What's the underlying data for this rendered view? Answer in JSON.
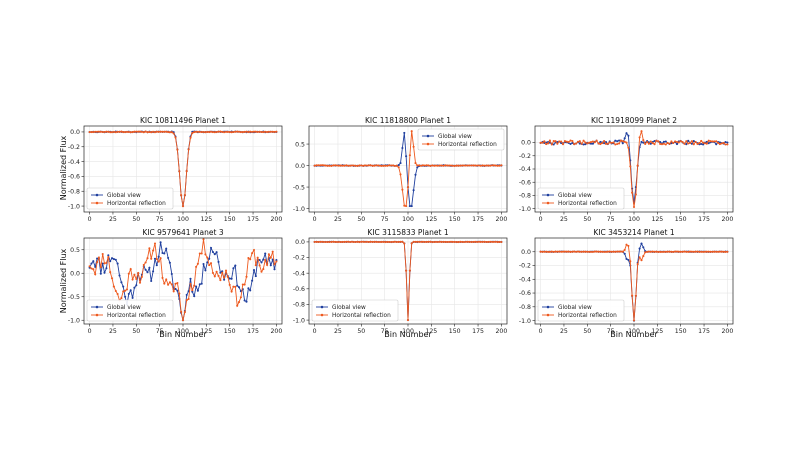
{
  "figure": {
    "xlabel": "Bin Number",
    "ylabel": "Normalized Flux",
    "colors": {
      "global_view": "#1f3f9e",
      "horizontal_reflection": "#ee5a1f",
      "grid": "#e6e6e6",
      "axes": "#222222"
    }
  },
  "chart_data": [
    {
      "type": "line",
      "title": "KIC 10811496 Planet 1",
      "xlim": [
        -6,
        206
      ],
      "ylim": [
        -1.08,
        0.08
      ],
      "xticks": [
        0,
        25,
        50,
        75,
        100,
        125,
        150,
        175,
        200
      ],
      "yticks": [
        0.0,
        -0.2,
        -0.4,
        -0.6,
        -0.8,
        -1.0
      ],
      "ytick_labels": [
        "0.0",
        "-0.2",
        "-0.4",
        "-0.6",
        "-0.8",
        "-1.0"
      ],
      "legend_position": "lower-left",
      "series": [
        {
          "name": "Global view",
          "color": "#1f3f9e",
          "profile": "dip",
          "dip_depth": -1.0,
          "dip_center": 100,
          "dip_width": 5,
          "bumps": [
            {
              "x": 91,
              "height": 0.02
            },
            {
              "x": 109,
              "height": 0.02
            }
          ],
          "noise": 0.008
        },
        {
          "name": "Horizontal reflection",
          "color": "#ee5a1f",
          "profile": "dip",
          "dip_depth": -1.0,
          "dip_center": 100,
          "dip_width": 5,
          "bumps": [],
          "noise": 0.008
        }
      ]
    },
    {
      "type": "line",
      "title": "KIC 11818800 Planet 1",
      "xlim": [
        -6,
        206
      ],
      "ylim": [
        -1.08,
        0.92
      ],
      "xticks": [
        0,
        25,
        50,
        75,
        100,
        125,
        150,
        175,
        200
      ],
      "yticks": [
        0.5,
        0.0,
        -0.5,
        -1.0
      ],
      "ytick_labels": [
        "0.5",
        "0.0",
        "-0.5",
        "-1.0"
      ],
      "legend_position": "upper-right",
      "series": [
        {
          "name": "Global view",
          "color": "#1f3f9e",
          "profile": "dip",
          "dip_depth": -1.0,
          "dip_center": 103,
          "dip_width": 4,
          "bumps": [
            {
              "x": 96,
              "height": 0.8
            }
          ],
          "noise": 0.015
        },
        {
          "name": "Horizontal reflection",
          "color": "#ee5a1f",
          "profile": "dip",
          "dip_depth": -1.0,
          "dip_center": 97,
          "dip_width": 4,
          "bumps": [
            {
              "x": 104,
              "height": 0.85
            }
          ],
          "noise": 0.015
        }
      ]
    },
    {
      "type": "line",
      "title": "KIC 11918099 Planet 2",
      "xlim": [
        -6,
        206
      ],
      "ylim": [
        -1.05,
        0.25
      ],
      "xticks": [
        0,
        25,
        50,
        75,
        100,
        125,
        150,
        175,
        200
      ],
      "yticks": [
        0.0,
        -0.2,
        -0.4,
        -0.6,
        -0.8,
        -1.0
      ],
      "ytick_labels": [
        "0.0",
        "-0.2",
        "-0.4",
        "-0.6",
        "-0.8",
        "-1.0"
      ],
      "legend_position": "lower-left",
      "series": [
        {
          "name": "Global view",
          "color": "#1f3f9e",
          "profile": "dip",
          "dip_depth": -0.9,
          "dip_center": 100,
          "dip_width": 4,
          "bumps": [
            {
              "x": 93,
              "height": 0.2
            }
          ],
          "noise": 0.06
        },
        {
          "name": "Horizontal reflection",
          "color": "#ee5a1f",
          "profile": "dip",
          "dip_depth": -1.0,
          "dip_center": 100,
          "dip_width": 4,
          "bumps": [
            {
              "x": 107,
              "height": 0.2
            }
          ],
          "noise": 0.06
        }
      ]
    },
    {
      "type": "line",
      "title": "KIC 9579641 Planet 3",
      "xlim": [
        -6,
        206
      ],
      "ylim": [
        -1.08,
        0.75
      ],
      "xticks": [
        0,
        25,
        50,
        75,
        100,
        125,
        150,
        175,
        200
      ],
      "yticks": [
        0.5,
        0.0,
        -0.5,
        -1.0
      ],
      "ytick_labels": [
        "0.5",
        "0.0",
        "-0.5",
        "-1.0"
      ],
      "legend_position": "lower-left",
      "series": [
        {
          "name": "Global view",
          "color": "#1f3f9e",
          "profile": "noisy",
          "dip_depth": -1.0,
          "dip_center": 100,
          "dip_width": 4,
          "bumps": [],
          "noise": 0.6,
          "seed": 11
        },
        {
          "name": "Horizontal reflection",
          "color": "#ee5a1f",
          "profile": "noisy",
          "dip_depth": -1.0,
          "dip_center": 100,
          "dip_width": 4,
          "bumps": [],
          "noise": 0.6,
          "seed": 11,
          "mirror": true
        }
      ]
    },
    {
      "type": "line",
      "title": "KIC 3115833 Planet 1",
      "xlim": [
        -6,
        206
      ],
      "ylim": [
        -1.05,
        0.05
      ],
      "xticks": [
        0,
        25,
        50,
        75,
        100,
        125,
        150,
        175,
        200
      ],
      "yticks": [
        0.0,
        -0.2,
        -0.4,
        -0.6,
        -0.8,
        -1.0
      ],
      "ytick_labels": [
        "0.0",
        "-0.2",
        "-0.4",
        "-0.6",
        "-0.8",
        "-1.0"
      ],
      "legend_position": "lower-left",
      "series": [
        {
          "name": "Global view",
          "color": "#1f3f9e",
          "profile": "dip",
          "dip_depth": -1.0,
          "dip_center": 100,
          "dip_width": 2,
          "bumps": [],
          "noise": 0.004
        },
        {
          "name": "Horizontal reflection",
          "color": "#ee5a1f",
          "profile": "dip",
          "dip_depth": -1.0,
          "dip_center": 100,
          "dip_width": 2,
          "bumps": [],
          "noise": 0.004
        }
      ]
    },
    {
      "type": "line",
      "title": "KIC 3453214 Planet 1",
      "xlim": [
        -6,
        206
      ],
      "ylim": [
        -1.05,
        0.2
      ],
      "xticks": [
        0,
        25,
        50,
        75,
        100,
        125,
        150,
        175,
        200
      ],
      "yticks": [
        0.0,
        -0.2,
        -0.4,
        -0.6,
        -0.8,
        -1.0
      ],
      "ytick_labels": [
        "0.0",
        "-0.2",
        "-0.4",
        "-0.6",
        "-0.8",
        "-1.0"
      ],
      "legend_position": "lower-left",
      "series": [
        {
          "name": "Global view",
          "color": "#1f3f9e",
          "profile": "dip",
          "dip_depth": -1.0,
          "dip_center": 100,
          "dip_width": 3,
          "bumps": [
            {
              "x": 93,
              "height": -0.12
            },
            {
              "x": 108,
              "height": 0.12
            }
          ],
          "noise": 0.005
        },
        {
          "name": "Horizontal reflection",
          "color": "#ee5a1f",
          "profile": "dip",
          "dip_depth": -1.0,
          "dip_center": 100,
          "dip_width": 3,
          "bumps": [
            {
              "x": 93,
              "height": 0.12
            },
            {
              "x": 108,
              "height": -0.12
            }
          ],
          "noise": 0.005
        }
      ]
    }
  ]
}
